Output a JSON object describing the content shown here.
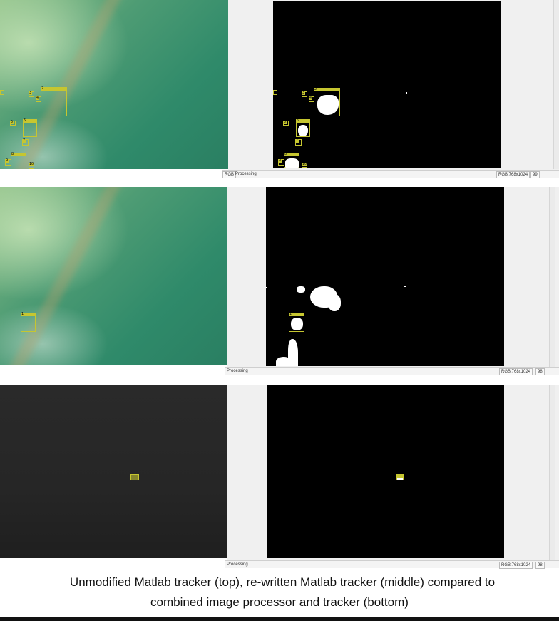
{
  "panels": {
    "top": {
      "status_left_label": "RGB",
      "status_processing": "Processing",
      "status_resolution": "RGB:768x1024",
      "status_frame": "99",
      "tags": [
        "2",
        "3",
        "4",
        "5",
        "6",
        "7",
        "8",
        "9",
        "10",
        "11",
        "12",
        "13"
      ]
    },
    "middle": {
      "status_processing": "Processing",
      "status_resolution": "RGB:768x1024",
      "status_frame": "98",
      "tags": [
        "1",
        "1"
      ]
    },
    "bottom": {
      "status_processing": "Processing",
      "status_resolution": "RGB:768x1024",
      "status_frame": "98"
    }
  },
  "caption": {
    "line1": "Unmodified Matlab tracker (top), re-written Matlab tracker (middle) compared to",
    "line2": "combined image processor and tracker (bottom)"
  },
  "colors": {
    "bbox": "#c6c630",
    "mask_bg": "#000000",
    "blob": "#ffffff"
  }
}
